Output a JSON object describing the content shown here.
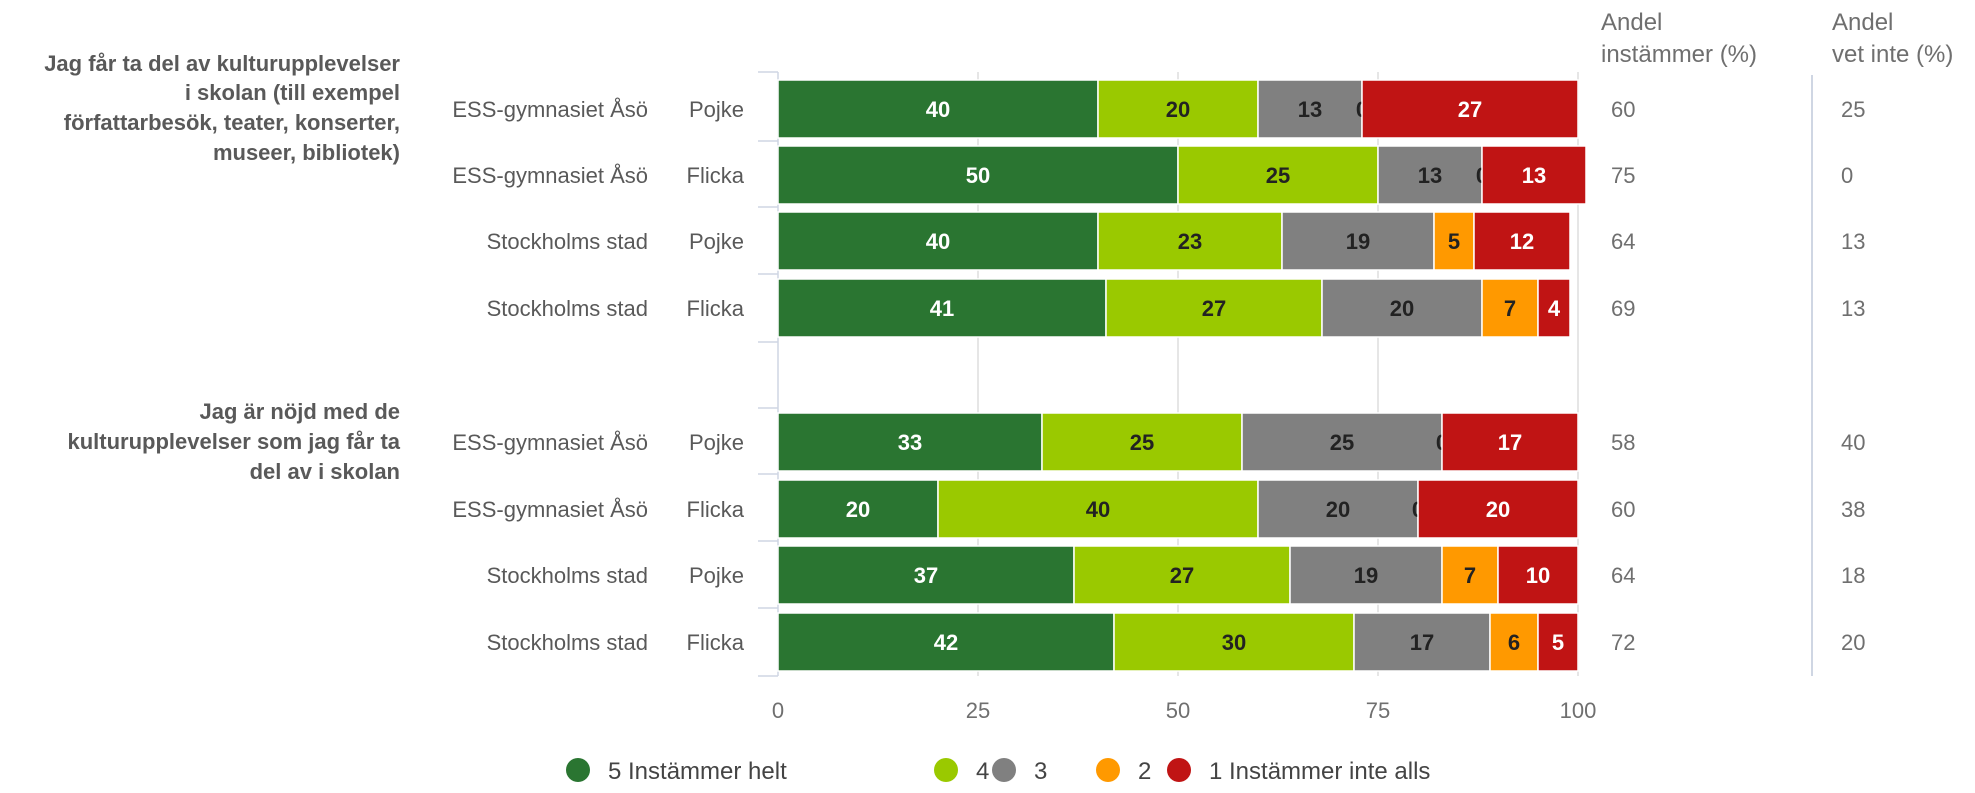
{
  "chart_data": {
    "type": "bar",
    "stacked": true,
    "orientation": "horizontal",
    "xlim": [
      0,
      100
    ],
    "xticks": [
      "0",
      "25",
      "50",
      "75",
      "100"
    ],
    "grid": true,
    "legend_position": "bottom",
    "categories": [
      "5 Instämmer helt",
      "4",
      "3",
      "2",
      "1 Instämmer inte alls"
    ],
    "category_colors": [
      "#2a7531",
      "#9ac900",
      "#808080",
      "#ff9900",
      "#c01414"
    ],
    "label_colors": [
      "#ffffff",
      "#222222",
      "#222222",
      "#222222",
      "#ffffff"
    ],
    "extra_columns": [
      {
        "header": [
          "Andel",
          "instämmer (%)"
        ]
      },
      {
        "header": [
          "Andel",
          "vet inte (%)"
        ]
      }
    ],
    "groups": [
      {
        "question": [
          "Jag får ta del av kulturupplevelser",
          "i skolan (till exempel",
          "författarbesök, teater, konserter,",
          "museer, bibliotek)"
        ],
        "rows": [
          {
            "school": "ESS-gymnasiet Åsö",
            "gender": "Pojke",
            "values": [
              40,
              20,
              13,
              0,
              27
            ],
            "andel_instammer": "60",
            "andel_vet_inte": "25"
          },
          {
            "school": "ESS-gymnasiet Åsö",
            "gender": "Flicka",
            "values": [
              50,
              25,
              13,
              0,
              13
            ],
            "andel_instammer": "75",
            "andel_vet_inte": "0"
          },
          {
            "school": "Stockholms stad",
            "gender": "Pojke",
            "values": [
              40,
              23,
              19,
              5,
              12
            ],
            "andel_instammer": "64",
            "andel_vet_inte": "13"
          },
          {
            "school": "Stockholms stad",
            "gender": "Flicka",
            "values": [
              41,
              27,
              20,
              7,
              4
            ],
            "andel_instammer": "69",
            "andel_vet_inte": "13"
          }
        ]
      },
      {
        "question": [
          "Jag är nöjd med de",
          "kulturupplevelser som jag får ta",
          "del av i skolan"
        ],
        "rows": [
          {
            "school": "ESS-gymnasiet Åsö",
            "gender": "Pojke",
            "values": [
              33,
              25,
              25,
              0,
              17
            ],
            "andel_instammer": "58",
            "andel_vet_inte": "40"
          },
          {
            "school": "ESS-gymnasiet Åsö",
            "gender": "Flicka",
            "values": [
              20,
              40,
              20,
              0,
              20
            ],
            "andel_instammer": "60",
            "andel_vet_inte": "38"
          },
          {
            "school": "Stockholms stad",
            "gender": "Pojke",
            "values": [
              37,
              27,
              19,
              7,
              10
            ],
            "andel_instammer": "64",
            "andel_vet_inte": "18"
          },
          {
            "school": "Stockholms stad",
            "gender": "Flicka",
            "values": [
              42,
              30,
              17,
              6,
              5
            ],
            "andel_instammer": "72",
            "andel_vet_inte": "20"
          }
        ]
      }
    ]
  }
}
